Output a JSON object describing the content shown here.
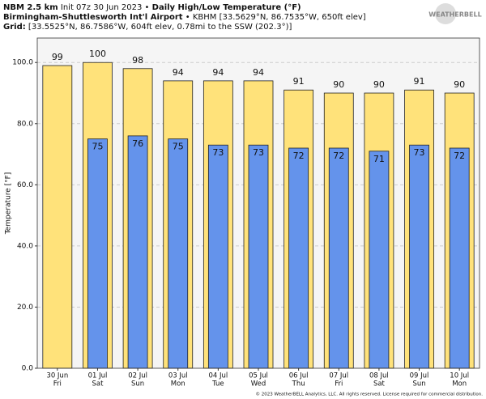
{
  "chart_data": {
    "type": "bar",
    "title": {
      "model": "NBM 2.5 km",
      "init": "Init 07z 30 Jun 2023 •",
      "product": "Daily High/Low Temperature (°F)"
    },
    "station": {
      "name": "Birmingham-Shuttlesworth Int'l Airport",
      "info": "• KBHM [33.5629°N, 86.7535°W, 650ft elev]"
    },
    "grid_info": {
      "label": "Grid:",
      "info": "[33.5525°N, 86.7586°W, 604ft elev, 0.78mi to the SSW (202.3°)]"
    },
    "logo": "WEATHERBELL",
    "footer": "© 2023 WeatherBELL Analytics, LLC. All rights reserved. License required for commercial distribution.",
    "ylabel": "Temperature [°F]",
    "categories": [
      "30 Jun",
      "01 Jul",
      "02 Jul",
      "03 Jul",
      "04 Jul",
      "05 Jul",
      "06 Jul",
      "07 Jul",
      "08 Jul",
      "09 Jul",
      "10 Jul"
    ],
    "category_weekdays": [
      "Fri",
      "Sat",
      "Sun",
      "Mon",
      "Tue",
      "Wed",
      "Thu",
      "Fri",
      "Sat",
      "Sun",
      "Mon"
    ],
    "series": [
      {
        "color": "#ffe27a",
        "values": [
          99,
          100,
          98,
          94,
          94,
          94,
          91,
          90,
          90,
          91,
          90
        ]
      },
      {
        "color": "#6493eb",
        "values": [
          null,
          75,
          76,
          75,
          73,
          73,
          72,
          72,
          71,
          73,
          72
        ]
      }
    ],
    "ylim": [
      0,
      108
    ],
    "yticks": [
      {
        "value": 0,
        "label": "0.0"
      },
      {
        "value": 20,
        "label": "20.0"
      },
      {
        "value": 40,
        "label": "40.0"
      },
      {
        "value": 60,
        "label": "60.0"
      },
      {
        "value": 80,
        "label": "80.0"
      },
      {
        "value": 100,
        "label": "100.0"
      }
    ],
    "grid": true
  }
}
